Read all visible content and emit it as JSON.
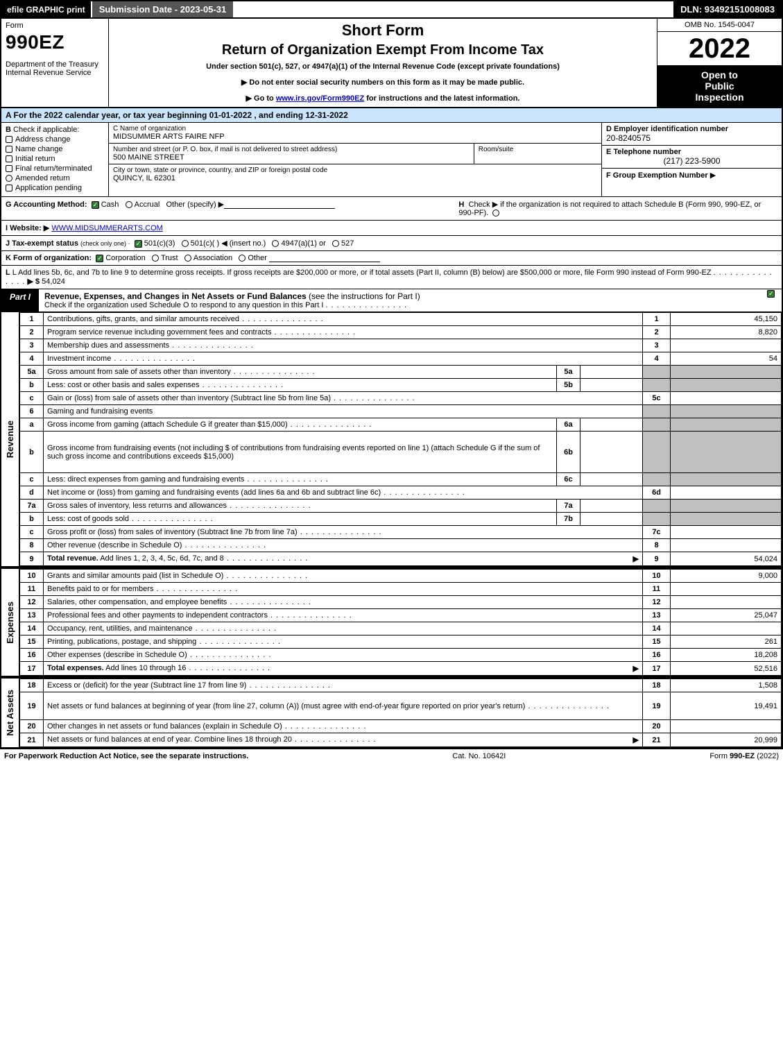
{
  "topbar": {
    "efile": "efile GRAPHIC print",
    "submission": "Submission Date - 2023-05-31",
    "dln": "DLN: 93492151008083"
  },
  "header": {
    "form_label": "Form",
    "form_number": "990EZ",
    "dept": "Department of the Treasury\nInternal Revenue Service",
    "title_short": "Short Form",
    "title_main": "Return of Organization Exempt From Income Tax",
    "subtitle_section": "Under section 501(c), 527, or 4947(a)(1) of the Internal Revenue Code (except private foundations)",
    "instr_ssn": "▶ Do not enter social security numbers on this form as it may be made public.",
    "instr_goto_pre": "▶ Go to ",
    "instr_goto_link": "www.irs.gov/Form990EZ",
    "instr_goto_post": " for instructions and the latest information.",
    "omb": "OMB No. 1545-0047",
    "tax_year": "2022",
    "inspect1": "Open to",
    "inspect2": "Public",
    "inspect3": "Inspection"
  },
  "row_a": "A  For the 2022 calendar year, or tax year beginning 01-01-2022  , and ending 12-31-2022",
  "section_b": {
    "label": "B",
    "caption": "Check if applicable:",
    "items": [
      "Address change",
      "Name change",
      "Initial return",
      "Final return/terminated",
      "Amended return",
      "Application pending"
    ]
  },
  "section_c": {
    "name_caption": "C Name of organization",
    "name": "MIDSUMMER ARTS FAIRE NFP",
    "street_caption": "Number and street (or P. O. box, if mail is not delivered to street address)",
    "room_caption": "Room/suite",
    "street": "500 MAINE STREET",
    "city_caption": "City or town, state or province, country, and ZIP or foreign postal code",
    "city": "QUINCY, IL  62301"
  },
  "section_d": {
    "label": "D Employer identification number",
    "value": "20-8240575"
  },
  "section_e": {
    "label": "E Telephone number",
    "value": "(217) 223-5900"
  },
  "section_f": {
    "label": "F Group Exemption Number",
    "arrow": "▶"
  },
  "row_g": {
    "label": "G Accounting Method:",
    "cash": "Cash",
    "accrual": "Accrual",
    "other": "Other (specify) ▶"
  },
  "row_h": {
    "label": "H",
    "text": "Check ▶     if the organization is not required to attach Schedule B (Form 990, 990-EZ, or 990-PF)."
  },
  "row_i": {
    "label": "I Website: ▶",
    "value": "WWW.MIDSUMMERARTS.COM"
  },
  "row_j": {
    "label": "J Tax-exempt status",
    "sub": "(check only one) ·",
    "opt1": "501(c)(3)",
    "opt2": "501(c)(   ) ◀ (insert no.)",
    "opt3": "4947(a)(1) or",
    "opt4": "527"
  },
  "row_k": {
    "label": "K Form of organization:",
    "opts": [
      "Corporation",
      "Trust",
      "Association",
      "Other"
    ]
  },
  "row_l": {
    "text": "L Add lines 5b, 6c, and 7b to line 9 to determine gross receipts. If gross receipts are $200,000 or more, or if total assets (Part II, column (B) below) are $500,000 or more, file Form 990 instead of Form 990-EZ",
    "arrow": "▶ $",
    "amount": "54,024"
  },
  "part1": {
    "tab": "Part I",
    "title": "Revenue, Expenses, and Changes in Net Assets or Fund Balances",
    "title_paren": "(see the instructions for Part I)",
    "sub": "Check if the organization used Schedule O to respond to any question in this Part I"
  },
  "sidelabels": {
    "revenue": "Revenue",
    "expenses": "Expenses",
    "netassets": "Net Assets"
  },
  "revenue_lines": [
    {
      "n": "1",
      "desc": "Contributions, gifts, grants, and similar amounts received",
      "box": "1",
      "amt": "45,150"
    },
    {
      "n": "2",
      "desc": "Program service revenue including government fees and contracts",
      "box": "2",
      "amt": "8,820"
    },
    {
      "n": "3",
      "desc": "Membership dues and assessments",
      "box": "3",
      "amt": ""
    },
    {
      "n": "4",
      "desc": "Investment income",
      "box": "4",
      "amt": "54"
    },
    {
      "n": "5a",
      "desc": "Gross amount from sale of assets other than inventory",
      "in": "5a",
      "grey": true
    },
    {
      "n": "b",
      "desc": "Less: cost or other basis and sales expenses",
      "in": "5b",
      "grey": true
    },
    {
      "n": "c",
      "desc": "Gain or (loss) from sale of assets other than inventory (Subtract line 5b from line 5a)",
      "box": "5c",
      "amt": ""
    },
    {
      "n": "6",
      "desc": "Gaming and fundraising events",
      "grey": true,
      "noright": true
    },
    {
      "n": "a",
      "desc": "Gross income from gaming (attach Schedule G if greater than $15,000)",
      "in": "6a",
      "grey": true
    },
    {
      "n": "b",
      "desc": "Gross income from fundraising events (not including $                    of contributions from fundraising events reported on line 1) (attach Schedule G if the sum of such gross income and contributions exceeds $15,000)",
      "in": "6b",
      "grey": true,
      "tall": true
    },
    {
      "n": "c",
      "desc": "Less: direct expenses from gaming and fundraising events",
      "in": "6c",
      "grey": true
    },
    {
      "n": "d",
      "desc": "Net income or (loss) from gaming and fundraising events (add lines 6a and 6b and subtract line 6c)",
      "box": "6d",
      "amt": ""
    },
    {
      "n": "7a",
      "desc": "Gross sales of inventory, less returns and allowances",
      "in": "7a",
      "grey": true
    },
    {
      "n": "b",
      "desc": "Less: cost of goods sold",
      "in": "7b",
      "grey": true
    },
    {
      "n": "c",
      "desc": "Gross profit or (loss) from sales of inventory (Subtract line 7b from line 7a)",
      "box": "7c",
      "amt": ""
    },
    {
      "n": "8",
      "desc": "Other revenue (describe in Schedule O)",
      "box": "8",
      "amt": ""
    },
    {
      "n": "9",
      "desc": "Total revenue. Add lines 1, 2, 3, 4, 5c, 6d, 7c, and 8",
      "box": "9",
      "amt": "54,024",
      "bold": true,
      "arrow": true
    }
  ],
  "expense_lines": [
    {
      "n": "10",
      "desc": "Grants and similar amounts paid (list in Schedule O)",
      "box": "10",
      "amt": "9,000"
    },
    {
      "n": "11",
      "desc": "Benefits paid to or for members",
      "box": "11",
      "amt": ""
    },
    {
      "n": "12",
      "desc": "Salaries, other compensation, and employee benefits",
      "box": "12",
      "amt": ""
    },
    {
      "n": "13",
      "desc": "Professional fees and other payments to independent contractors",
      "box": "13",
      "amt": "25,047"
    },
    {
      "n": "14",
      "desc": "Occupancy, rent, utilities, and maintenance",
      "box": "14",
      "amt": ""
    },
    {
      "n": "15",
      "desc": "Printing, publications, postage, and shipping",
      "box": "15",
      "amt": "261"
    },
    {
      "n": "16",
      "desc": "Other expenses (describe in Schedule O)",
      "box": "16",
      "amt": "18,208"
    },
    {
      "n": "17",
      "desc": "Total expenses. Add lines 10 through 16",
      "box": "17",
      "amt": "52,516",
      "bold": true,
      "arrow": true
    }
  ],
  "netasset_lines": [
    {
      "n": "18",
      "desc": "Excess or (deficit) for the year (Subtract line 17 from line 9)",
      "box": "18",
      "amt": "1,508"
    },
    {
      "n": "19",
      "desc": "Net assets or fund balances at beginning of year (from line 27, column (A)) (must agree with end-of-year figure reported on prior year's return)",
      "box": "19",
      "amt": "19,491",
      "tall": true
    },
    {
      "n": "20",
      "desc": "Other changes in net assets or fund balances (explain in Schedule O)",
      "box": "20",
      "amt": ""
    },
    {
      "n": "21",
      "desc": "Net assets or fund balances at end of year. Combine lines 18 through 20",
      "box": "21",
      "amt": "20,999",
      "arrow": true
    }
  ],
  "footer": {
    "left": "For Paperwork Reduction Act Notice, see the separate instructions.",
    "center": "Cat. No. 10642I",
    "right_pre": "Form ",
    "right_form": "990-EZ",
    "right_post": " (2022)"
  },
  "colors": {
    "row_a_bg": "#cce5ff",
    "grey_bg": "#bfbfbf",
    "link": "#0000cc",
    "check_green": "#2e7d32"
  }
}
